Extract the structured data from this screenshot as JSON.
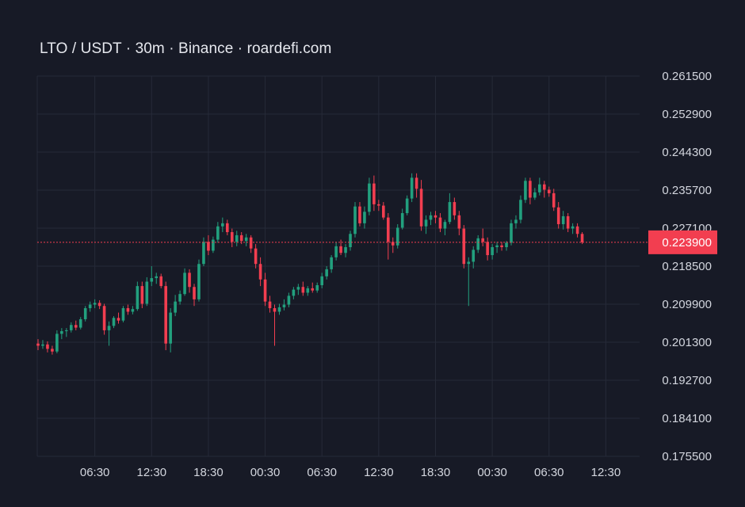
{
  "chart_title": "LTO / USDT · 30m · Binance · roardefi.com",
  "colors": {
    "background": "#171a26",
    "grid": "#262a38",
    "up": "#22a07e",
    "down": "#f23e50",
    "axis_text": "#d3d6de",
    "last_price": "#f23e50"
  },
  "chart_data": {
    "type": "candlestick",
    "title": "LTO / USDT · 30m · Binance · roardefi.com",
    "interval": "30m",
    "ylim": [
      0.1755,
      0.2615
    ],
    "y_ticks": [
      "0.261500",
      "0.252900",
      "0.244300",
      "0.235700",
      "0.227100",
      "0.218500",
      "0.209900",
      "0.201300",
      "0.192700",
      "0.184100",
      "0.175500"
    ],
    "x_ticks": [
      {
        "label": "06:30",
        "index": 12
      },
      {
        "label": "12:30",
        "index": 24
      },
      {
        "label": "18:30",
        "index": 36
      },
      {
        "label": "00:30",
        "index": 48
      },
      {
        "label": "06:30",
        "index": 60
      },
      {
        "label": "12:30",
        "index": 72
      },
      {
        "label": "18:30",
        "index": 84
      },
      {
        "label": "00:30",
        "index": 96
      },
      {
        "label": "06:30",
        "index": 108
      },
      {
        "label": "12:30",
        "index": 120
      }
    ],
    "grid": true,
    "last_price": "0.223900",
    "last_price_value": 0.2239,
    "candles": [
      [
        0.201,
        0.202,
        0.1995,
        0.2005
      ],
      [
        0.2005,
        0.2018,
        0.1998,
        0.2008
      ],
      [
        0.2008,
        0.2015,
        0.199,
        0.1998
      ],
      [
        0.1998,
        0.2005,
        0.1985,
        0.1992
      ],
      [
        0.1992,
        0.204,
        0.1988,
        0.2032
      ],
      [
        0.2032,
        0.2045,
        0.202,
        0.2038
      ],
      [
        0.2038,
        0.2045,
        0.2025,
        0.204
      ],
      [
        0.204,
        0.2058,
        0.2035,
        0.2052
      ],
      [
        0.2052,
        0.2062,
        0.204,
        0.2046
      ],
      [
        0.2046,
        0.207,
        0.2042,
        0.2065
      ],
      [
        0.2065,
        0.2095,
        0.206,
        0.209
      ],
      [
        0.209,
        0.2105,
        0.2082,
        0.2098
      ],
      [
        0.2098,
        0.211,
        0.209,
        0.2102
      ],
      [
        0.2102,
        0.2108,
        0.2088,
        0.2095
      ],
      [
        0.2095,
        0.21,
        0.203,
        0.204
      ],
      [
        0.204,
        0.206,
        0.2005,
        0.205
      ],
      [
        0.205,
        0.2072,
        0.2045,
        0.2068
      ],
      [
        0.2068,
        0.208,
        0.2055,
        0.2062
      ],
      [
        0.2062,
        0.2095,
        0.2058,
        0.209
      ],
      [
        0.209,
        0.2098,
        0.2075,
        0.2082
      ],
      [
        0.2082,
        0.2095,
        0.2076,
        0.2088
      ],
      [
        0.2088,
        0.215,
        0.2084,
        0.214
      ],
      [
        0.214,
        0.215,
        0.209,
        0.21
      ],
      [
        0.21,
        0.216,
        0.2095,
        0.215
      ],
      [
        0.215,
        0.2185,
        0.214,
        0.2158
      ],
      [
        0.2158,
        0.217,
        0.2145,
        0.2162
      ],
      [
        0.2162,
        0.2168,
        0.2135,
        0.214
      ],
      [
        0.214,
        0.215,
        0.1995,
        0.201
      ],
      [
        0.201,
        0.209,
        0.199,
        0.208
      ],
      [
        0.208,
        0.212,
        0.2072,
        0.2105
      ],
      [
        0.2105,
        0.213,
        0.2098,
        0.2122
      ],
      [
        0.2122,
        0.218,
        0.2118,
        0.217
      ],
      [
        0.217,
        0.2178,
        0.2125,
        0.2138
      ],
      [
        0.2138,
        0.2145,
        0.2095,
        0.211
      ],
      [
        0.211,
        0.22,
        0.2105,
        0.219
      ],
      [
        0.219,
        0.225,
        0.2185,
        0.224
      ],
      [
        0.224,
        0.2255,
        0.221,
        0.222
      ],
      [
        0.222,
        0.2252,
        0.2215,
        0.2245
      ],
      [
        0.2245,
        0.2285,
        0.2238,
        0.2275
      ],
      [
        0.2275,
        0.2295,
        0.2262,
        0.2282
      ],
      [
        0.2282,
        0.229,
        0.2255,
        0.2262
      ],
      [
        0.2262,
        0.227,
        0.2228,
        0.224
      ],
      [
        0.224,
        0.2265,
        0.223,
        0.2255
      ],
      [
        0.2255,
        0.2262,
        0.2235,
        0.2242
      ],
      [
        0.2242,
        0.2258,
        0.223,
        0.225
      ],
      [
        0.225,
        0.2255,
        0.2215,
        0.2225
      ],
      [
        0.2225,
        0.2235,
        0.218,
        0.219
      ],
      [
        0.219,
        0.2205,
        0.214,
        0.2155
      ],
      [
        0.2155,
        0.217,
        0.2095,
        0.2105
      ],
      [
        0.2105,
        0.2118,
        0.208,
        0.209
      ],
      [
        0.209,
        0.2098,
        0.2005,
        0.2082
      ],
      [
        0.2082,
        0.21,
        0.2075,
        0.2092
      ],
      [
        0.2092,
        0.211,
        0.2085,
        0.2098
      ],
      [
        0.2098,
        0.2125,
        0.2092,
        0.2118
      ],
      [
        0.2118,
        0.2138,
        0.211,
        0.2132
      ],
      [
        0.2132,
        0.2145,
        0.212,
        0.2138
      ],
      [
        0.2138,
        0.215,
        0.2118,
        0.2125
      ],
      [
        0.2125,
        0.214,
        0.2118,
        0.2135
      ],
      [
        0.2135,
        0.2148,
        0.2125,
        0.213
      ],
      [
        0.213,
        0.2148,
        0.2125,
        0.2142
      ],
      [
        0.2142,
        0.217,
        0.2135,
        0.2162
      ],
      [
        0.2162,
        0.2185,
        0.2155,
        0.2178
      ],
      [
        0.2178,
        0.221,
        0.217,
        0.2205
      ],
      [
        0.2205,
        0.224,
        0.2198,
        0.223
      ],
      [
        0.223,
        0.2245,
        0.221,
        0.2215
      ],
      [
        0.2215,
        0.2235,
        0.2205,
        0.2228
      ],
      [
        0.2228,
        0.2265,
        0.222,
        0.2258
      ],
      [
        0.2258,
        0.233,
        0.225,
        0.232
      ],
      [
        0.232,
        0.233,
        0.2275,
        0.2282
      ],
      [
        0.2282,
        0.232,
        0.227,
        0.2308
      ],
      [
        0.2308,
        0.2385,
        0.23,
        0.2372
      ],
      [
        0.2372,
        0.239,
        0.231,
        0.2325
      ],
      [
        0.2325,
        0.2335,
        0.231,
        0.2322
      ],
      [
        0.2322,
        0.233,
        0.229,
        0.2295
      ],
      [
        0.2295,
        0.2305,
        0.22,
        0.224
      ],
      [
        0.224,
        0.225,
        0.2215,
        0.2232
      ],
      [
        0.2232,
        0.228,
        0.2225,
        0.2272
      ],
      [
        0.2272,
        0.2315,
        0.2268,
        0.2305
      ],
      [
        0.2305,
        0.2345,
        0.23,
        0.2338
      ],
      [
        0.2338,
        0.2395,
        0.233,
        0.2385
      ],
      [
        0.2385,
        0.2395,
        0.234,
        0.236
      ],
      [
        0.236,
        0.238,
        0.2265,
        0.2275
      ],
      [
        0.2275,
        0.23,
        0.2258,
        0.229
      ],
      [
        0.229,
        0.2308,
        0.2278,
        0.23
      ],
      [
        0.23,
        0.231,
        0.2282,
        0.2295
      ],
      [
        0.2295,
        0.2305,
        0.2262,
        0.227
      ],
      [
        0.227,
        0.229,
        0.2255,
        0.2285
      ],
      [
        0.2285,
        0.235,
        0.228,
        0.233
      ],
      [
        0.233,
        0.234,
        0.229,
        0.23
      ],
      [
        0.23,
        0.231,
        0.2255,
        0.227
      ],
      [
        0.227,
        0.2278,
        0.218,
        0.219
      ],
      [
        0.219,
        0.2205,
        0.2095,
        0.2195
      ],
      [
        0.2195,
        0.223,
        0.218,
        0.2222
      ],
      [
        0.2222,
        0.2255,
        0.2215,
        0.2248
      ],
      [
        0.2248,
        0.227,
        0.223,
        0.224
      ],
      [
        0.224,
        0.225,
        0.2198,
        0.221
      ],
      [
        0.221,
        0.2235,
        0.22,
        0.2228
      ],
      [
        0.2228,
        0.224,
        0.2215,
        0.2232
      ],
      [
        0.2232,
        0.224,
        0.222,
        0.2228
      ],
      [
        0.2228,
        0.2242,
        0.222,
        0.2238
      ],
      [
        0.2238,
        0.229,
        0.2232,
        0.2282
      ],
      [
        0.2282,
        0.23,
        0.227,
        0.229
      ],
      [
        0.229,
        0.2345,
        0.2282,
        0.2335
      ],
      [
        0.2335,
        0.2385,
        0.2328,
        0.2378
      ],
      [
        0.2378,
        0.2385,
        0.2325,
        0.234
      ],
      [
        0.234,
        0.2362,
        0.2335,
        0.2352
      ],
      [
        0.2352,
        0.2385,
        0.2345,
        0.237
      ],
      [
        0.237,
        0.2378,
        0.234,
        0.2358
      ],
      [
        0.2358,
        0.2365,
        0.2342,
        0.235
      ],
      [
        0.235,
        0.236,
        0.231,
        0.2318
      ],
      [
        0.2318,
        0.233,
        0.227,
        0.228
      ],
      [
        0.228,
        0.231,
        0.2268,
        0.2298
      ],
      [
        0.2298,
        0.2305,
        0.2262,
        0.227
      ],
      [
        0.227,
        0.2282,
        0.2258,
        0.2275
      ],
      [
        0.2275,
        0.2282,
        0.225,
        0.2258
      ],
      [
        0.2258,
        0.2262,
        0.2235,
        0.2239
      ]
    ]
  }
}
